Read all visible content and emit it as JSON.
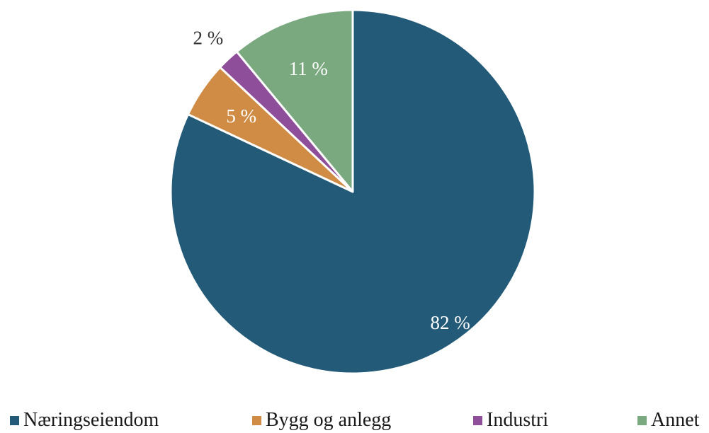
{
  "chart_data": {
    "type": "pie",
    "title": "",
    "categories": [
      "Næringseiendom",
      "Bygg og anlegg",
      "Industri",
      "Annet"
    ],
    "values": [
      82,
      5,
      2,
      11
    ],
    "labels": [
      "82 %",
      "5 %",
      "2 %",
      "11 %"
    ],
    "colors": [
      "#235a78",
      "#d08c44",
      "#8e4e9a",
      "#7aa87f"
    ],
    "label_colors": [
      "#ffffff",
      "#ffffff",
      "#333333",
      "#ffffff"
    ],
    "start_angle_deg": 0,
    "direction": "counterclockwise-from-top-order-reversed",
    "legend_position": "bottom"
  }
}
